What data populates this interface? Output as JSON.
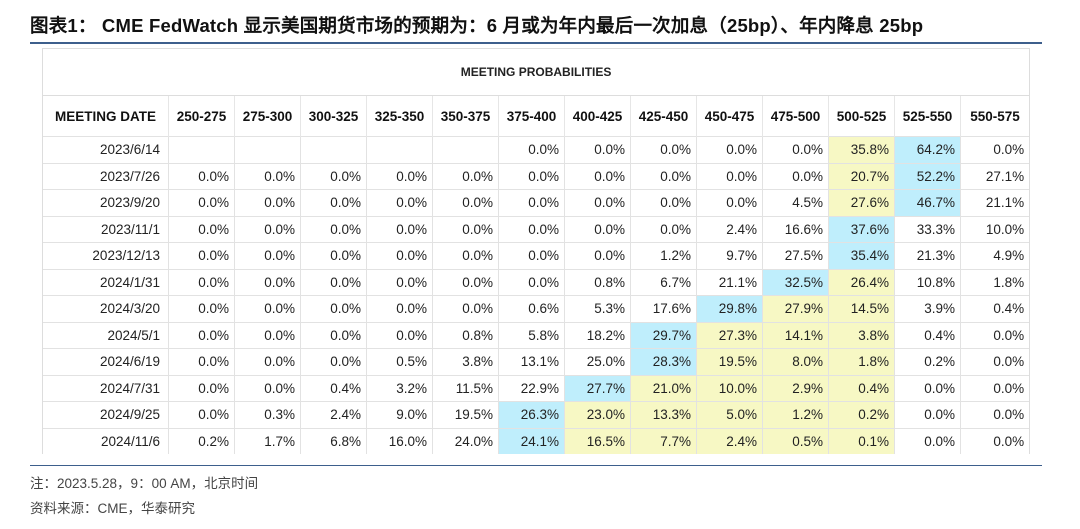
{
  "title": "图表1： CME FedWatch 显示美国期货市场的预期为：6 月或为年内最后一次加息（25bp）、年内降息 25bp",
  "table": {
    "banner": "MEETING PROBABILITIES",
    "headers": [
      "MEETING DATE",
      "250-275",
      "275-300",
      "300-325",
      "325-350",
      "350-375",
      "375-400",
      "400-425",
      "425-450",
      "450-475",
      "475-500",
      "500-525",
      "525-550",
      "550-575"
    ],
    "rows": [
      {
        "date": "2023/6/14",
        "cells": [
          "",
          "",
          "",
          "",
          "",
          "0.0%",
          "0.0%",
          "0.0%",
          "0.0%",
          "0.0%",
          "35.8%",
          "64.2%",
          "0.0%"
        ],
        "hl": {
          "10": "y",
          "11": "c"
        }
      },
      {
        "date": "2023/7/26",
        "cells": [
          "0.0%",
          "0.0%",
          "0.0%",
          "0.0%",
          "0.0%",
          "0.0%",
          "0.0%",
          "0.0%",
          "0.0%",
          "0.0%",
          "20.7%",
          "52.2%",
          "27.1%"
        ],
        "hl": {
          "10": "y",
          "11": "c"
        }
      },
      {
        "date": "2023/9/20",
        "cells": [
          "0.0%",
          "0.0%",
          "0.0%",
          "0.0%",
          "0.0%",
          "0.0%",
          "0.0%",
          "0.0%",
          "0.0%",
          "4.5%",
          "27.6%",
          "46.7%",
          "21.1%"
        ],
        "hl": {
          "10": "y",
          "11": "c"
        }
      },
      {
        "date": "2023/11/1",
        "cells": [
          "0.0%",
          "0.0%",
          "0.0%",
          "0.0%",
          "0.0%",
          "0.0%",
          "0.0%",
          "0.0%",
          "2.4%",
          "16.6%",
          "37.6%",
          "33.3%",
          "10.0%"
        ],
        "hl": {
          "10": "c"
        }
      },
      {
        "date": "2023/12/13",
        "cells": [
          "0.0%",
          "0.0%",
          "0.0%",
          "0.0%",
          "0.0%",
          "0.0%",
          "0.0%",
          "1.2%",
          "9.7%",
          "27.5%",
          "35.4%",
          "21.3%",
          "4.9%"
        ],
        "hl": {
          "10": "c"
        }
      },
      {
        "date": "2024/1/31",
        "cells": [
          "0.0%",
          "0.0%",
          "0.0%",
          "0.0%",
          "0.0%",
          "0.0%",
          "0.8%",
          "6.7%",
          "21.1%",
          "32.5%",
          "26.4%",
          "10.8%",
          "1.8%"
        ],
        "hl": {
          "9": "c",
          "10": "y"
        }
      },
      {
        "date": "2024/3/20",
        "cells": [
          "0.0%",
          "0.0%",
          "0.0%",
          "0.0%",
          "0.0%",
          "0.6%",
          "5.3%",
          "17.6%",
          "29.8%",
          "27.9%",
          "14.5%",
          "3.9%",
          "0.4%"
        ],
        "hl": {
          "8": "c",
          "9": "y",
          "10": "y"
        }
      },
      {
        "date": "2024/5/1",
        "cells": [
          "0.0%",
          "0.0%",
          "0.0%",
          "0.0%",
          "0.8%",
          "5.8%",
          "18.2%",
          "29.7%",
          "27.3%",
          "14.1%",
          "3.8%",
          "0.4%",
          "0.0%"
        ],
        "hl": {
          "7": "c",
          "8": "y",
          "9": "y",
          "10": "y"
        }
      },
      {
        "date": "2024/6/19",
        "cells": [
          "0.0%",
          "0.0%",
          "0.0%",
          "0.5%",
          "3.8%",
          "13.1%",
          "25.0%",
          "28.3%",
          "19.5%",
          "8.0%",
          "1.8%",
          "0.2%",
          "0.0%"
        ],
        "hl": {
          "7": "c",
          "8": "y",
          "9": "y",
          "10": "y"
        }
      },
      {
        "date": "2024/7/31",
        "cells": [
          "0.0%",
          "0.0%",
          "0.4%",
          "3.2%",
          "11.5%",
          "22.9%",
          "27.7%",
          "21.0%",
          "10.0%",
          "2.9%",
          "0.4%",
          "0.0%",
          "0.0%"
        ],
        "hl": {
          "6": "c",
          "7": "y",
          "8": "y",
          "9": "y",
          "10": "y"
        }
      },
      {
        "date": "2024/9/25",
        "cells": [
          "0.0%",
          "0.3%",
          "2.4%",
          "9.0%",
          "19.5%",
          "26.3%",
          "23.0%",
          "13.3%",
          "5.0%",
          "1.2%",
          "0.2%",
          "0.0%",
          "0.0%"
        ],
        "hl": {
          "5": "c",
          "6": "y",
          "7": "y",
          "8": "y",
          "9": "y",
          "10": "y"
        }
      },
      {
        "date": "2024/11/6",
        "cells": [
          "0.2%",
          "1.7%",
          "6.8%",
          "16.0%",
          "24.0%",
          "24.1%",
          "16.5%",
          "7.7%",
          "2.4%",
          "0.5%",
          "0.1%",
          "0.0%",
          "0.0%"
        ],
        "hl": {
          "5": "c",
          "6": "y",
          "7": "y",
          "8": "y",
          "9": "y",
          "10": "y"
        }
      }
    ]
  },
  "note": "注：2023.5.28，9：00 AM，北京时间",
  "source": "资料来源：CME，华泰研究",
  "colors": {
    "highlight_yellow": "#f7f8c4",
    "highlight_cyan": "#bfeefc",
    "rule": "#3d5f8c"
  }
}
